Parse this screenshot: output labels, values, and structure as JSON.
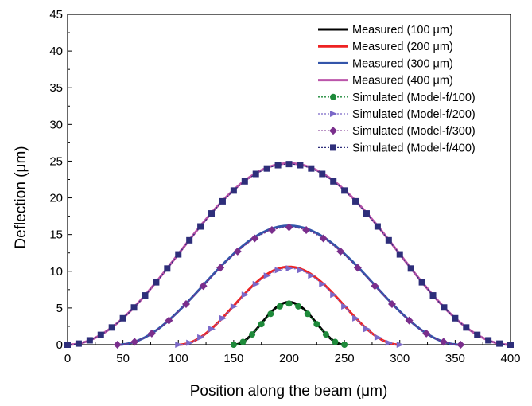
{
  "chart_data": {
    "type": "line",
    "title": "",
    "xlabel": "Position along the beam (μm)",
    "ylabel": "Deflection (μm)",
    "xlim": [
      0,
      400
    ],
    "ylim": [
      0,
      45
    ],
    "xticks": [
      "0",
      "50",
      "100",
      "150",
      "200",
      "250",
      "300",
      "350",
      "400"
    ],
    "yticks": [
      "0",
      "5",
      "10",
      "15",
      "20",
      "25",
      "30",
      "35",
      "40",
      "45"
    ],
    "grid": false,
    "legend_position": "top-right",
    "series": [
      {
        "name": "Measured (100 μm)",
        "kind": "measured",
        "color": "#000000",
        "x_start": 150,
        "x_end": 250,
        "peak": 5.8
      },
      {
        "name": "Measured (200 μm)",
        "kind": "measured",
        "color": "#ee2222",
        "x_start": 100,
        "x_end": 300,
        "peak": 10.6
      },
      {
        "name": "Measured (300 μm)",
        "kind": "measured",
        "color": "#3355aa",
        "x_start": 45,
        "x_end": 355,
        "peak": 16.2
      },
      {
        "name": "Measured (400 μm)",
        "kind": "measured",
        "color": "#bb55aa",
        "x_start": 0,
        "x_end": 400,
        "peak": 24.7
      },
      {
        "name": "Simulated (Model-f/100)",
        "kind": "simulated",
        "marker": "circle",
        "color": "#1e8a3a",
        "x_start": 150,
        "x_end": 250,
        "peak": 5.6,
        "step": 8.33
      },
      {
        "name": "Simulated (Model-f/200)",
        "kind": "simulated",
        "marker": "triangle-right",
        "color": "#7b68c8",
        "x_start": 100,
        "x_end": 300,
        "peak": 10.4,
        "step": 10
      },
      {
        "name": "Simulated (Model-f/300)",
        "kind": "simulated",
        "marker": "diamond",
        "color": "#7a2e8c",
        "x_start": 45,
        "x_end": 355,
        "peak": 16.0,
        "step": 15.5
      },
      {
        "name": "Simulated (Model-f/400)",
        "kind": "simulated",
        "marker": "square",
        "color": "#2e2e7a",
        "x_start": 0,
        "x_end": 400,
        "peak": 24.6,
        "step": 10
      }
    ]
  }
}
